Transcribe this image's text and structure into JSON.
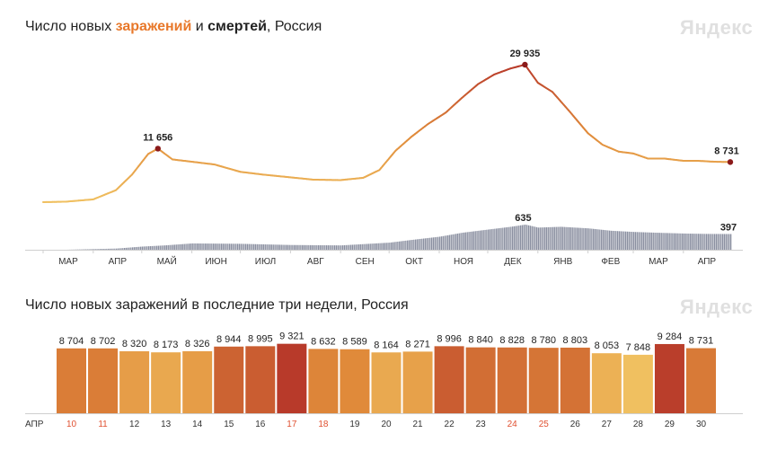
{
  "top": {
    "title_prefix": "Число новых ",
    "title_infections": "заражений",
    "title_middle": " и ",
    "title_deaths": "смертей",
    "title_suffix": ", Россия",
    "logo": "Яндекс"
  },
  "bottom": {
    "title": "Число новых заражений в последние три недели, Россия",
    "logo": "Яндекс"
  },
  "colors": {
    "infections_low": "#f0c060",
    "infections_mid": "#e08a3a",
    "infections_high": "#b83a2a",
    "deaths_bars": "#8a8fa0",
    "weekend_day": "#e05030",
    "marker": "#8b1a1a"
  },
  "chart_data": [
    {
      "type": "line",
      "series": [
        {
          "name": "заражений",
          "x": [
            "2020-03-01",
            "2020-03-15",
            "2020-04-01",
            "2020-04-15",
            "2020-04-25",
            "2020-05-05",
            "2020-05-11",
            "2020-05-20",
            "2020-06-01",
            "2020-06-15",
            "2020-07-01",
            "2020-07-15",
            "2020-08-01",
            "2020-08-15",
            "2020-09-01",
            "2020-09-15",
            "2020-09-25",
            "2020-10-05",
            "2020-10-15",
            "2020-10-25",
            "2020-11-05",
            "2020-11-15",
            "2020-11-25",
            "2020-12-05",
            "2020-12-15",
            "2020-12-24",
            "2021-01-01",
            "2021-01-10",
            "2021-01-20",
            "2021-02-01",
            "2021-02-10",
            "2021-02-20",
            "2021-03-01",
            "2021-03-10",
            "2021-03-20",
            "2021-04-01",
            "2021-04-10",
            "2021-04-20",
            "2021-04-30"
          ],
          "values": [
            0,
            100,
            600,
            2600,
            6000,
            10500,
            11656,
            9300,
            8800,
            8200,
            6600,
            6000,
            5400,
            4900,
            4800,
            5300,
            7000,
            11200,
            14300,
            17000,
            19500,
            22700,
            25700,
            27800,
            29100,
            29935,
            26000,
            24000,
            20000,
            15000,
            12500,
            11000,
            10600,
            9500,
            9500,
            9000,
            9000,
            8800,
            8731
          ]
        },
        {
          "name": "смертей",
          "x": [
            "2020-03-15",
            "2020-04-15",
            "2020-05-01",
            "2020-05-15",
            "2020-06-01",
            "2020-07-01",
            "2020-08-01",
            "2020-09-01",
            "2020-10-01",
            "2020-10-15",
            "2020-11-01",
            "2020-11-15",
            "2020-12-01",
            "2020-12-15",
            "2020-12-24",
            "2021-01-01",
            "2021-01-15",
            "2021-02-01",
            "2021-02-15",
            "2021-03-01",
            "2021-03-15",
            "2021-04-01",
            "2021-04-15",
            "2021-04-30"
          ],
          "values": [
            0,
            30,
            80,
            110,
            160,
            150,
            120,
            110,
            180,
            250,
            330,
            430,
            510,
            580,
            635,
            560,
            580,
            540,
            480,
            450,
            430,
            410,
            400,
            397
          ]
        }
      ],
      "x_ticks": [
        "МАР",
        "АПР",
        "МАЙ",
        "ИЮН",
        "ИЮЛ",
        "АВГ",
        "СЕН",
        "ОКТ",
        "НОЯ",
        "ДЕК",
        "ЯНВ",
        "ФЕВ",
        "МАР",
        "АПР"
      ],
      "annotations": [
        "11 656",
        "29 935",
        "8 731",
        "635",
        "397"
      ]
    },
    {
      "type": "bar",
      "month_label": "АПР",
      "categories": [
        "10",
        "11",
        "12",
        "13",
        "14",
        "15",
        "16",
        "17",
        "18",
        "19",
        "20",
        "21",
        "22",
        "23",
        "24",
        "25",
        "26",
        "27",
        "28",
        "29",
        "30"
      ],
      "values": [
        8704,
        8702,
        8320,
        8173,
        8326,
        8944,
        8995,
        9321,
        8632,
        8589,
        8164,
        8271,
        8996,
        8840,
        8828,
        8780,
        8803,
        8053,
        7848,
        9284,
        8731
      ],
      "value_labels": [
        "8 704",
        "8 702",
        "8 320",
        "8 173",
        "8 326",
        "8 944",
        "8 995",
        "9 321",
        "8 632",
        "8 589",
        "8 164",
        "8 271",
        "8 996",
        "8 840",
        "8 828",
        "8 780",
        "8 803",
        "8 053",
        "7 848",
        "9 284",
        "8 731"
      ],
      "weekend_categories": [
        "10",
        "11",
        "17",
        "18",
        "24",
        "25"
      ],
      "ylim": [
        0,
        9400
      ]
    }
  ]
}
